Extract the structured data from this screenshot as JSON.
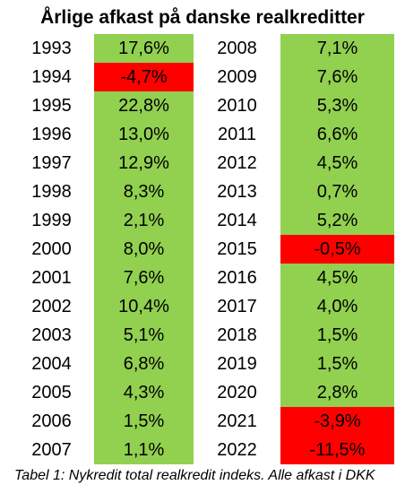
{
  "title": "Årlige afkast på danske realkreditter",
  "caption": "Tabel 1: Nykredit total realkredit indeks. Alle afkast i DKK",
  "colors": {
    "positive": "#92d050",
    "negative": "#ff0000"
  },
  "chart_data": {
    "type": "table",
    "columns": [
      [
        {
          "year": "1993",
          "value": "17,6%"
        },
        {
          "year": "1994",
          "value": "-4,7%"
        },
        {
          "year": "1995",
          "value": "22,8%"
        },
        {
          "year": "1996",
          "value": "13,0%"
        },
        {
          "year": "1997",
          "value": "12,9%"
        },
        {
          "year": "1998",
          "value": "8,3%"
        },
        {
          "year": "1999",
          "value": "2,1%"
        },
        {
          "year": "2000",
          "value": "8,0%"
        },
        {
          "year": "2001",
          "value": "7,6%"
        },
        {
          "year": "2002",
          "value": "10,4%"
        },
        {
          "year": "2003",
          "value": "5,1%"
        },
        {
          "year": "2004",
          "value": "6,8%"
        },
        {
          "year": "2005",
          "value": "4,3%"
        },
        {
          "year": "2006",
          "value": "1,5%"
        },
        {
          "year": "2007",
          "value": "1,1%"
        }
      ],
      [
        {
          "year": "2008",
          "value": "7,1%"
        },
        {
          "year": "2009",
          "value": "7,6%"
        },
        {
          "year": "2010",
          "value": "5,3%"
        },
        {
          "year": "2011",
          "value": "6,6%"
        },
        {
          "year": "2012",
          "value": "4,5%"
        },
        {
          "year": "2013",
          "value": "0,7%"
        },
        {
          "year": "2014",
          "value": "5,2%"
        },
        {
          "year": "2015",
          "value": "-0,5%"
        },
        {
          "year": "2016",
          "value": "4,5%"
        },
        {
          "year": "2017",
          "value": "4,0%"
        },
        {
          "year": "2018",
          "value": "1,5%"
        },
        {
          "year": "2019",
          "value": "1,5%"
        },
        {
          "year": "2020",
          "value": "2,8%"
        },
        {
          "year": "2021",
          "value": "-3,9%"
        },
        {
          "year": "2022",
          "value": "-11,5%"
        }
      ]
    ]
  }
}
